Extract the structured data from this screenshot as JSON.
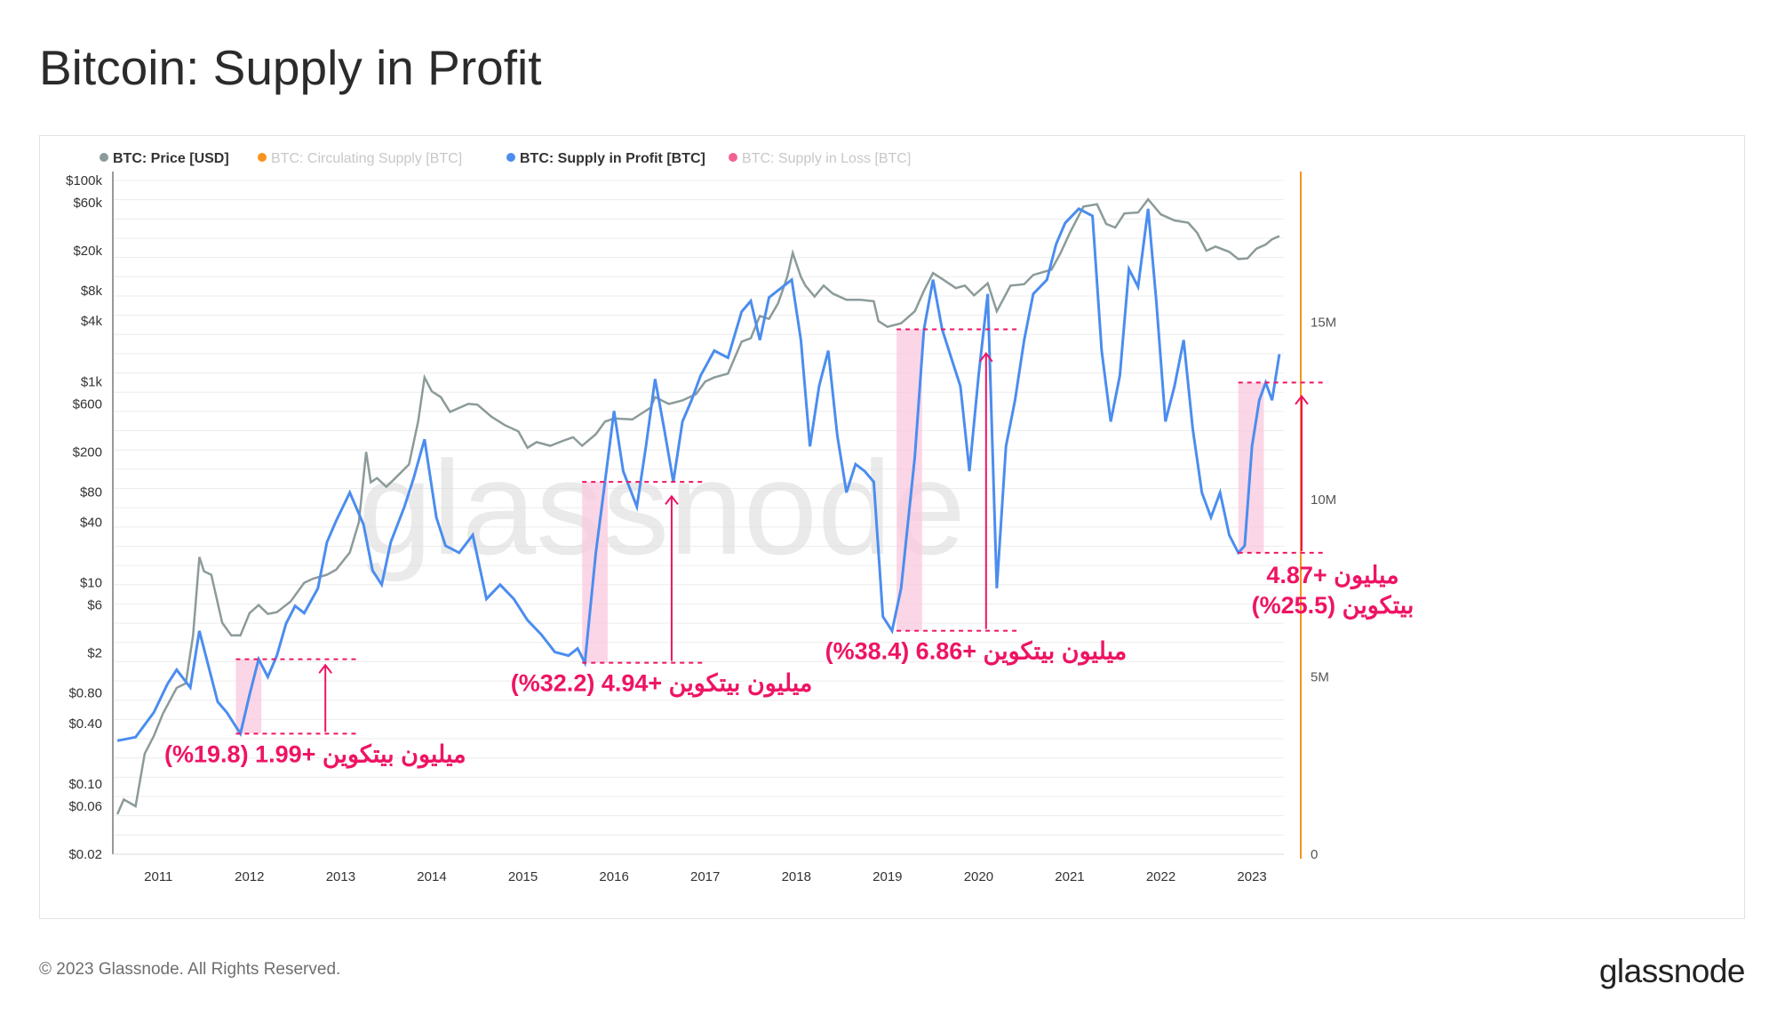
{
  "title": "Bitcoin: Supply in Profit",
  "footer": {
    "copyright": "© 2023 Glassnode. All Rights Reserved.",
    "logo": "glassnode"
  },
  "watermark": "glassnode",
  "legend": [
    {
      "label": "BTC: Price [USD]",
      "color": "#8c9a9a",
      "active": true
    },
    {
      "label": "BTC: Circulating Supply [BTC]",
      "color": "#f7931a",
      "active": false
    },
    {
      "label": "BTC: Supply in Profit [BTC]",
      "color": "#4b8def",
      "active": true
    },
    {
      "label": "BTC: Supply in Loss [BTC]",
      "color": "#f06292",
      "active": false
    }
  ],
  "colors": {
    "price": "#8c9a9a",
    "supply_profit": "#4b8def",
    "circulating": "#f7931a",
    "highlight": "#f9c8de",
    "annotation": "#ee1464",
    "grid": "#ececec"
  },
  "chart_data": {
    "type": "line",
    "x_ticks": [
      "2011",
      "2012",
      "2013",
      "2014",
      "2015",
      "2016",
      "2017",
      "2018",
      "2019",
      "2020",
      "2021",
      "2022",
      "2023"
    ],
    "x_range": [
      2010.5,
      2023.35
    ],
    "y_left": {
      "scale": "log",
      "range": [
        0.02,
        100000
      ],
      "tick_values": [
        0.02,
        0.06,
        0.1,
        0.4,
        0.8,
        2,
        6,
        10,
        40,
        80,
        200,
        600,
        1000,
        4000,
        8000,
        20000,
        60000,
        100000
      ],
      "tick_labels": [
        "$0.02",
        "$0.06",
        "$0.10",
        "$0.40",
        "$0.80",
        "$2",
        "$6",
        "$10",
        "$40",
        "$80",
        "$200",
        "$600",
        "$1k",
        "$4k",
        "$8k",
        "$20k",
        "$60k",
        "$100k"
      ]
    },
    "y_right": {
      "scale": "linear",
      "range": [
        0,
        19000000
      ],
      "tick_values": [
        0,
        5000000,
        10000000,
        15000000
      ],
      "tick_labels": [
        "0",
        "5M",
        "10M",
        "15M"
      ]
    },
    "series": [
      {
        "name": "BTC: Price [USD]",
        "axis": "left",
        "points": [
          [
            2010.55,
            0.05
          ],
          [
            2010.62,
            0.07
          ],
          [
            2010.75,
            0.06
          ],
          [
            2010.85,
            0.2
          ],
          [
            2010.95,
            0.3
          ],
          [
            2011.05,
            0.5
          ],
          [
            2011.2,
            0.9
          ],
          [
            2011.3,
            1.0
          ],
          [
            2011.38,
            3
          ],
          [
            2011.45,
            18
          ],
          [
            2011.5,
            13
          ],
          [
            2011.58,
            12
          ],
          [
            2011.7,
            4
          ],
          [
            2011.8,
            3
          ],
          [
            2011.9,
            3
          ],
          [
            2012.0,
            5
          ],
          [
            2012.1,
            6
          ],
          [
            2012.2,
            4.9
          ],
          [
            2012.3,
            5.1
          ],
          [
            2012.45,
            6.5
          ],
          [
            2012.6,
            10
          ],
          [
            2012.7,
            11
          ],
          [
            2012.85,
            12
          ],
          [
            2012.95,
            13.5
          ],
          [
            2013.1,
            20
          ],
          [
            2013.2,
            40
          ],
          [
            2013.28,
            200
          ],
          [
            2013.33,
            100
          ],
          [
            2013.4,
            110
          ],
          [
            2013.5,
            90
          ],
          [
            2013.6,
            110
          ],
          [
            2013.75,
            150
          ],
          [
            2013.85,
            400
          ],
          [
            2013.92,
            1100
          ],
          [
            2014.0,
            800
          ],
          [
            2014.1,
            700
          ],
          [
            2014.2,
            500
          ],
          [
            2014.4,
            600
          ],
          [
            2014.5,
            590
          ],
          [
            2014.65,
            450
          ],
          [
            2014.8,
            370
          ],
          [
            2014.95,
            320
          ],
          [
            2015.05,
            220
          ],
          [
            2015.15,
            250
          ],
          [
            2015.3,
            230
          ],
          [
            2015.45,
            260
          ],
          [
            2015.55,
            280
          ],
          [
            2015.65,
            230
          ],
          [
            2015.8,
            300
          ],
          [
            2015.9,
            400
          ],
          [
            2016.0,
            430
          ],
          [
            2016.2,
            420
          ],
          [
            2016.4,
            550
          ],
          [
            2016.45,
            700
          ],
          [
            2016.6,
            600
          ],
          [
            2016.75,
            650
          ],
          [
            2016.9,
            750
          ],
          [
            2017.0,
            1000
          ],
          [
            2017.1,
            1100
          ],
          [
            2017.25,
            1200
          ],
          [
            2017.4,
            2500
          ],
          [
            2017.5,
            2700
          ],
          [
            2017.6,
            4500
          ],
          [
            2017.7,
            4200
          ],
          [
            2017.8,
            6000
          ],
          [
            2017.9,
            11000
          ],
          [
            2017.96,
            19000
          ],
          [
            2018.05,
            11000
          ],
          [
            2018.1,
            9000
          ],
          [
            2018.2,
            7000
          ],
          [
            2018.3,
            9000
          ],
          [
            2018.4,
            7500
          ],
          [
            2018.55,
            6500
          ],
          [
            2018.7,
            6500
          ],
          [
            2018.85,
            6300
          ],
          [
            2018.9,
            4000
          ],
          [
            2019.0,
            3500
          ],
          [
            2019.15,
            3800
          ],
          [
            2019.3,
            5000
          ],
          [
            2019.4,
            8000
          ],
          [
            2019.5,
            12000
          ],
          [
            2019.6,
            10500
          ],
          [
            2019.75,
            8500
          ],
          [
            2019.85,
            9000
          ],
          [
            2019.95,
            7200
          ],
          [
            2020.1,
            9500
          ],
          [
            2020.2,
            5000
          ],
          [
            2020.35,
            9000
          ],
          [
            2020.5,
            9300
          ],
          [
            2020.6,
            11500
          ],
          [
            2020.8,
            13000
          ],
          [
            2020.9,
            19000
          ],
          [
            2021.0,
            30000
          ],
          [
            2021.15,
            55000
          ],
          [
            2021.3,
            58000
          ],
          [
            2021.4,
            37000
          ],
          [
            2021.5,
            34000
          ],
          [
            2021.6,
            47000
          ],
          [
            2021.75,
            48000
          ],
          [
            2021.86,
            65000
          ],
          [
            2022.0,
            46000
          ],
          [
            2022.15,
            40000
          ],
          [
            2022.3,
            38000
          ],
          [
            2022.4,
            30000
          ],
          [
            2022.5,
            20000
          ],
          [
            2022.6,
            22000
          ],
          [
            2022.75,
            19500
          ],
          [
            2022.85,
            16500
          ],
          [
            2022.95,
            16800
          ],
          [
            2023.05,
            21000
          ],
          [
            2023.15,
            23000
          ],
          [
            2023.22,
            26000
          ],
          [
            2023.3,
            28000
          ]
        ]
      },
      {
        "name": "BTC: Supply in Profit [BTC]",
        "axis": "right",
        "points": [
          [
            2010.55,
            3.2
          ],
          [
            2010.75,
            3.3
          ],
          [
            2010.95,
            4.0
          ],
          [
            2011.1,
            4.8
          ],
          [
            2011.2,
            5.2
          ],
          [
            2011.35,
            4.7
          ],
          [
            2011.45,
            6.3
          ],
          [
            2011.55,
            5.3
          ],
          [
            2011.65,
            4.3
          ],
          [
            2011.75,
            4.0
          ],
          [
            2011.9,
            3.4
          ],
          [
            2012.0,
            4.5
          ],
          [
            2012.1,
            5.5
          ],
          [
            2012.2,
            5.0
          ],
          [
            2012.3,
            5.6
          ],
          [
            2012.4,
            6.5
          ],
          [
            2012.5,
            7.0
          ],
          [
            2012.6,
            6.8
          ],
          [
            2012.75,
            7.5
          ],
          [
            2012.85,
            8.8
          ],
          [
            2012.95,
            9.4
          ],
          [
            2013.1,
            10.2
          ],
          [
            2013.25,
            9.3
          ],
          [
            2013.35,
            8.0
          ],
          [
            2013.45,
            7.6
          ],
          [
            2013.55,
            8.8
          ],
          [
            2013.7,
            9.8
          ],
          [
            2013.8,
            10.6
          ],
          [
            2013.92,
            11.7
          ],
          [
            2014.05,
            9.5
          ],
          [
            2014.15,
            8.7
          ],
          [
            2014.3,
            8.5
          ],
          [
            2014.45,
            9.0
          ],
          [
            2014.6,
            7.2
          ],
          [
            2014.75,
            7.6
          ],
          [
            2014.9,
            7.2
          ],
          [
            2015.05,
            6.6
          ],
          [
            2015.2,
            6.2
          ],
          [
            2015.35,
            5.7
          ],
          [
            2015.5,
            5.6
          ],
          [
            2015.6,
            5.8
          ],
          [
            2015.68,
            5.4
          ],
          [
            2015.8,
            8.5
          ],
          [
            2015.9,
            10.5
          ],
          [
            2016.0,
            12.5
          ],
          [
            2016.1,
            10.8
          ],
          [
            2016.25,
            9.8
          ],
          [
            2016.35,
            11.5
          ],
          [
            2016.45,
            13.4
          ],
          [
            2016.55,
            12.0
          ],
          [
            2016.65,
            10.5
          ],
          [
            2016.75,
            12.2
          ],
          [
            2016.85,
            12.8
          ],
          [
            2016.95,
            13.5
          ],
          [
            2017.1,
            14.2
          ],
          [
            2017.25,
            14.0
          ],
          [
            2017.4,
            15.3
          ],
          [
            2017.5,
            15.6
          ],
          [
            2017.6,
            14.5
          ],
          [
            2017.7,
            15.7
          ],
          [
            2017.8,
            15.9
          ],
          [
            2017.95,
            16.2
          ],
          [
            2018.05,
            14.5
          ],
          [
            2018.15,
            11.5
          ],
          [
            2018.25,
            13.2
          ],
          [
            2018.35,
            14.2
          ],
          [
            2018.45,
            11.8
          ],
          [
            2018.55,
            10.2
          ],
          [
            2018.65,
            11.0
          ],
          [
            2018.75,
            10.8
          ],
          [
            2018.85,
            10.5
          ],
          [
            2018.95,
            6.7
          ],
          [
            2019.05,
            6.3
          ],
          [
            2019.15,
            7.5
          ],
          [
            2019.3,
            11.2
          ],
          [
            2019.4,
            14.8
          ],
          [
            2019.5,
            16.2
          ],
          [
            2019.6,
            14.8
          ],
          [
            2019.7,
            14.0
          ],
          [
            2019.8,
            13.2
          ],
          [
            2019.9,
            10.8
          ],
          [
            2020.0,
            13.5
          ],
          [
            2020.1,
            15.8
          ],
          [
            2020.2,
            7.5
          ],
          [
            2020.3,
            11.5
          ],
          [
            2020.4,
            12.8
          ],
          [
            2020.5,
            14.5
          ],
          [
            2020.6,
            15.8
          ],
          [
            2020.75,
            16.2
          ],
          [
            2020.85,
            17.2
          ],
          [
            2020.95,
            17.8
          ],
          [
            2021.1,
            18.2
          ],
          [
            2021.25,
            18.0
          ],
          [
            2021.35,
            14.2
          ],
          [
            2021.45,
            12.2
          ],
          [
            2021.55,
            13.5
          ],
          [
            2021.65,
            16.5
          ],
          [
            2021.75,
            16.0
          ],
          [
            2021.86,
            18.2
          ],
          [
            2021.95,
            15.6
          ],
          [
            2022.05,
            12.2
          ],
          [
            2022.15,
            13.2
          ],
          [
            2022.25,
            14.5
          ],
          [
            2022.35,
            12.0
          ],
          [
            2022.45,
            10.2
          ],
          [
            2022.55,
            9.5
          ],
          [
            2022.65,
            10.2
          ],
          [
            2022.75,
            9.0
          ],
          [
            2022.85,
            8.5
          ],
          [
            2022.92,
            8.7
          ],
          [
            2023.0,
            11.5
          ],
          [
            2023.08,
            12.8
          ],
          [
            2023.15,
            13.3
          ],
          [
            2023.22,
            12.8
          ],
          [
            2023.3,
            14.1
          ]
        ]
      }
    ],
    "highlights": [
      {
        "start": 2011.85,
        "end": 2012.13
      },
      {
        "start": 2015.65,
        "end": 2015.93
      },
      {
        "start": 2019.1,
        "end": 2019.38
      },
      {
        "start": 2022.85,
        "end": 2023.13
      }
    ],
    "annotations": [
      {
        "text": "(%19.8)  1.99+ ميليون بيتكوين"
      },
      {
        "text": "(%32.2) 4.94+ ميليون بيتكوين"
      },
      {
        "text": "(%38.4) 6.86+ ميليون بيتكوين"
      },
      {
        "line1": "4.87+ ميليون",
        "line2": "(%25.5) بيتكوين"
      }
    ]
  }
}
